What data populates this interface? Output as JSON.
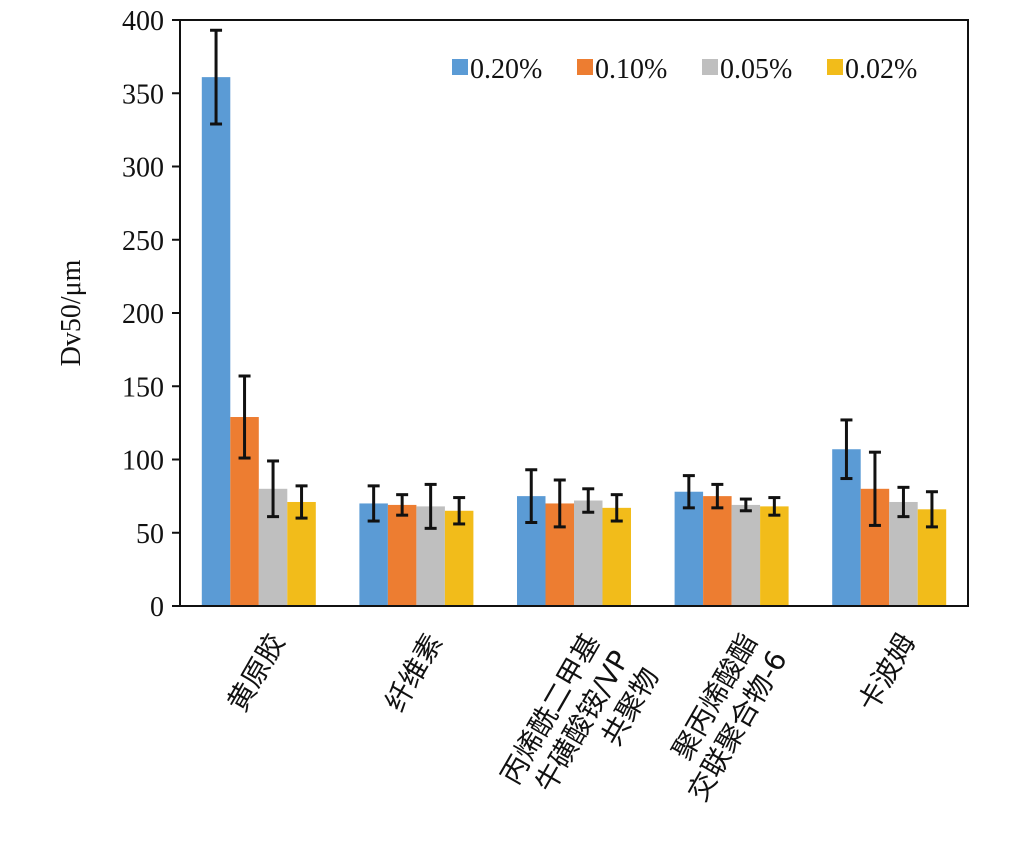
{
  "chart_data": {
    "type": "bar",
    "title": "",
    "ylabel": "Dv50/μm",
    "xlabel": "",
    "ylim": [
      0,
      400
    ],
    "yticks": [
      0,
      50,
      100,
      150,
      200,
      250,
      300,
      350,
      400
    ],
    "grid": false,
    "legend_position": "top-right",
    "categories": [
      [
        "黄原胶"
      ],
      [
        "纤维素"
      ],
      [
        "丙烯酰二甲基",
        "牛磺酸铵/VP",
        "共聚物"
      ],
      [
        "聚丙烯酸酯",
        "交联聚合物-6"
      ],
      [
        "卡波姆"
      ]
    ],
    "series": [
      {
        "name": "0.20%",
        "color": "#5B9BD5",
        "values": [
          361,
          70,
          75,
          78,
          107
        ],
        "error": [
          32,
          12,
          18,
          11,
          20
        ]
      },
      {
        "name": "0.10%",
        "color": "#ED7D31",
        "values": [
          129,
          69,
          70,
          75,
          80
        ],
        "error": [
          28,
          7,
          16,
          8,
          25
        ]
      },
      {
        "name": "0.05%",
        "color": "#BFBFBF",
        "values": [
          80,
          68,
          72,
          69,
          71
        ],
        "error": [
          19,
          15,
          8,
          4,
          10
        ]
      },
      {
        "name": "0.02%",
        "color": "#F2BC1A",
        "values": [
          71,
          65,
          67,
          68,
          66
        ],
        "error": [
          11,
          9,
          9,
          6,
          12
        ]
      }
    ]
  }
}
